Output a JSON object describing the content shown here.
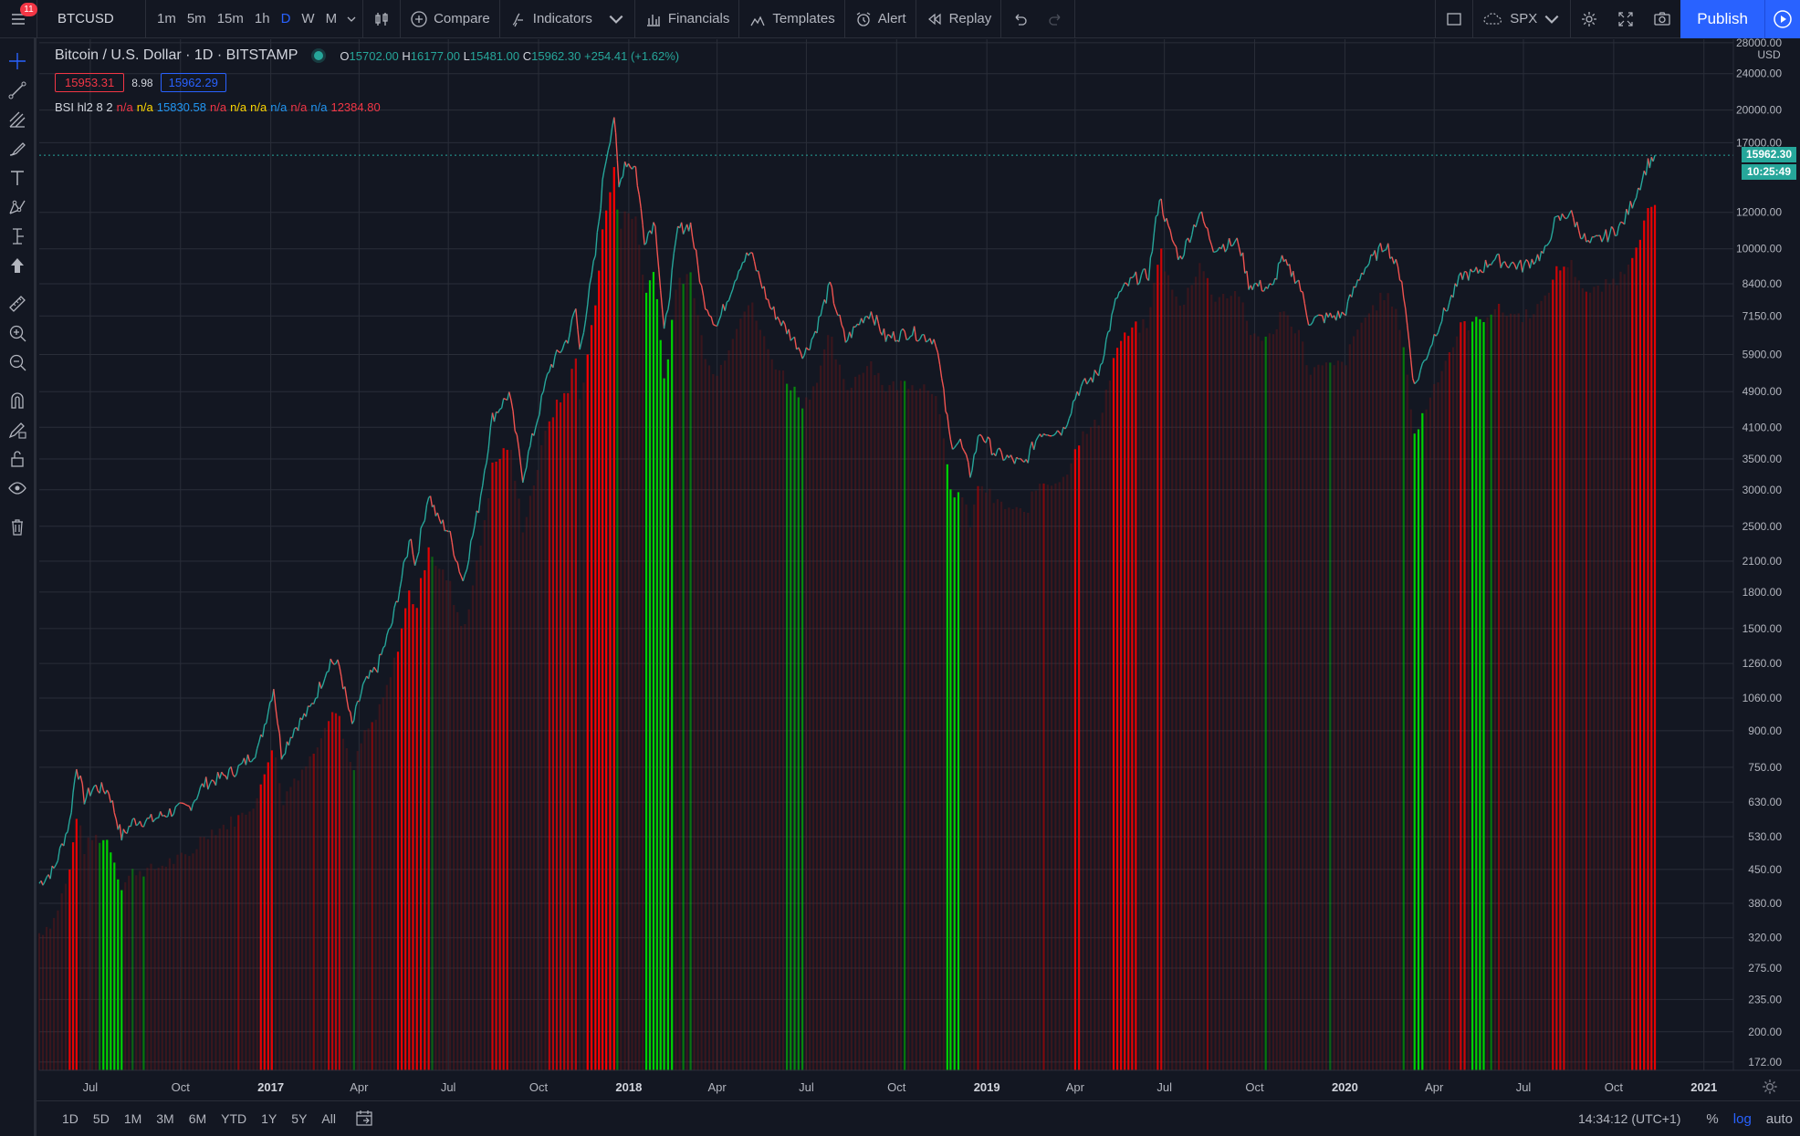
{
  "topbar": {
    "notifications": "11",
    "symbol": "BTCUSD",
    "intervals": [
      "1m",
      "5m",
      "15m",
      "1h",
      "D",
      "W",
      "M"
    ],
    "active_interval": "D",
    "compare_label": "Compare",
    "indicators_label": "Indicators",
    "financials_label": "Financials",
    "templates_label": "Templates",
    "alert_label": "Alert",
    "replay_label": "Replay",
    "spx_label": "SPX",
    "publish_label": "Publish"
  },
  "legend": {
    "title": "Bitcoin / U.S. Dollar · 1D · BITSTAMP",
    "open_label": "O",
    "open": "15702.00",
    "high_label": "H",
    "high": "16177.00",
    "low_label": "L",
    "low": "15481.00",
    "close_label": "C",
    "close": "15962.30",
    "change": "+254.41 (+1.62%)",
    "bid": "15953.31",
    "spread": "8.98",
    "ask": "15962.29",
    "indicator_name": "BSI hl2 8 2",
    "indicator_values": [
      "n/a",
      "n/a",
      "15830.58",
      "n/a",
      "n/a",
      "n/a",
      "n/a",
      "n/a",
      "n/a",
      "12384.80"
    ]
  },
  "price_scale": {
    "currency": "USD",
    "last_price_label": "15962.30",
    "countdown_label": "10:25:49"
  },
  "bottom": {
    "ranges": [
      "1D",
      "5D",
      "1M",
      "3M",
      "6M",
      "YTD",
      "1Y",
      "5Y",
      "All"
    ],
    "clock": "14:34:12 (UTC+1)",
    "percent_label": "%",
    "log_label": "log",
    "auto_label": "auto"
  },
  "colors": {
    "background": "#131722",
    "grid": "#2a2e39",
    "candle_up": "#26a69a",
    "candle_down": "#ef5350",
    "bar_red": "#ff0000",
    "bar_green": "#00c800",
    "accent": "#2962ff"
  },
  "chart_data": {
    "type": "line",
    "title": "Bitcoin / U.S. Dollar · 1D · BITSTAMP",
    "y_scale": "log",
    "ylim": [
      165,
      28500
    ],
    "yticks": [
      172,
      200,
      235,
      275,
      320,
      380,
      450,
      530,
      630,
      750,
      900,
      1060,
      1260,
      1500,
      1800,
      2100,
      2500,
      3000,
      3500,
      4100,
      4900,
      5900,
      7150,
      8400,
      10000,
      12000,
      17000,
      20000,
      24000,
      28000
    ],
    "ytick_labels": [
      "172.00",
      "200.00",
      "235.00",
      "275.00",
      "320.00",
      "380.00",
      "450.00",
      "530.00",
      "630.00",
      "750.00",
      "900.00",
      "1060.00",
      "1260.00",
      "1500.00",
      "1800.00",
      "2100.00",
      "2500.00",
      "3000.00",
      "3500.00",
      "4100.00",
      "4900.00",
      "5900.00",
      "7150.00",
      "8400.00",
      "10000.00",
      "12000.00",
      "17000.00",
      "20000.00",
      "24000.00",
      "28000.00"
    ],
    "xlim": [
      "2016-05-10",
      "2021-01-31"
    ],
    "xticks": [
      {
        "date": "2016-07-01",
        "label": "Jul",
        "bold": false
      },
      {
        "date": "2016-10-01",
        "label": "Oct",
        "bold": false
      },
      {
        "date": "2017-01-01",
        "label": "2017",
        "bold": true
      },
      {
        "date": "2017-04-01",
        "label": "Apr",
        "bold": false
      },
      {
        "date": "2017-07-01",
        "label": "Jul",
        "bold": false
      },
      {
        "date": "2017-10-01",
        "label": "Oct",
        "bold": false
      },
      {
        "date": "2018-01-01",
        "label": "2018",
        "bold": true
      },
      {
        "date": "2018-04-01",
        "label": "Apr",
        "bold": false
      },
      {
        "date": "2018-07-01",
        "label": "Jul",
        "bold": false
      },
      {
        "date": "2018-10-01",
        "label": "Oct",
        "bold": false
      },
      {
        "date": "2019-01-01",
        "label": "2019",
        "bold": true
      },
      {
        "date": "2019-04-01",
        "label": "Apr",
        "bold": false
      },
      {
        "date": "2019-07-01",
        "label": "Jul",
        "bold": false
      },
      {
        "date": "2019-10-01",
        "label": "Oct",
        "bold": false
      },
      {
        "date": "2020-01-01",
        "label": "2020",
        "bold": true
      },
      {
        "date": "2020-04-01",
        "label": "Apr",
        "bold": false
      },
      {
        "date": "2020-07-01",
        "label": "Jul",
        "bold": false
      },
      {
        "date": "2020-10-01",
        "label": "Oct",
        "bold": false
      },
      {
        "date": "2021-01-01",
        "label": "2021",
        "bold": true
      }
    ],
    "series": [
      {
        "name": "BTCUSD",
        "points": [
          [
            "2016-05-10",
            420
          ],
          [
            "2016-05-25",
            450
          ],
          [
            "2016-06-10",
            570
          ],
          [
            "2016-06-17",
            760
          ],
          [
            "2016-06-25",
            640
          ],
          [
            "2016-07-05",
            680
          ],
          [
            "2016-07-20",
            665
          ],
          [
            "2016-08-02",
            530
          ],
          [
            "2016-08-15",
            575
          ],
          [
            "2016-09-01",
            575
          ],
          [
            "2016-09-20",
            600
          ],
          [
            "2016-10-10",
            615
          ],
          [
            "2016-10-25",
            690
          ],
          [
            "2016-11-10",
            710
          ],
          [
            "2016-12-01",
            750
          ],
          [
            "2016-12-20",
            830
          ],
          [
            "2017-01-04",
            1120
          ],
          [
            "2017-01-12",
            800
          ],
          [
            "2017-01-25",
            910
          ],
          [
            "2017-02-10",
            1000
          ],
          [
            "2017-03-03",
            1280
          ],
          [
            "2017-03-12",
            1240
          ],
          [
            "2017-03-25",
            920
          ],
          [
            "2017-04-05",
            1120
          ],
          [
            "2017-04-20",
            1240
          ],
          [
            "2017-05-05",
            1550
          ],
          [
            "2017-05-24",
            2400
          ],
          [
            "2017-05-28",
            2050
          ],
          [
            "2017-06-11",
            2950
          ],
          [
            "2017-06-20",
            2600
          ],
          [
            "2017-07-01",
            2450
          ],
          [
            "2017-07-16",
            1900
          ],
          [
            "2017-08-01",
            2750
          ],
          [
            "2017-08-15",
            4300
          ],
          [
            "2017-09-01",
            4850
          ],
          [
            "2017-09-15",
            3200
          ],
          [
            "2017-09-30",
            4300
          ],
          [
            "2017-10-12",
            5500
          ],
          [
            "2017-10-31",
            6400
          ],
          [
            "2017-11-08",
            7400
          ],
          [
            "2017-11-12",
            6000
          ],
          [
            "2017-11-28",
            9700
          ],
          [
            "2017-12-07",
            15000
          ],
          [
            "2017-12-17",
            19500
          ],
          [
            "2017-12-22",
            13500
          ],
          [
            "2017-12-28",
            15500
          ],
          [
            "2018-01-08",
            15000
          ],
          [
            "2018-01-17",
            10500
          ],
          [
            "2018-01-28",
            11500
          ],
          [
            "2018-02-06",
            6500
          ],
          [
            "2018-02-20",
            11000
          ],
          [
            "2018-03-05",
            11300
          ],
          [
            "2018-03-18",
            7800
          ],
          [
            "2018-04-01",
            6800
          ],
          [
            "2018-04-25",
            9300
          ],
          [
            "2018-05-05",
            9800
          ],
          [
            "2018-05-25",
            7500
          ],
          [
            "2018-06-15",
            6500
          ],
          [
            "2018-06-29",
            5900
          ],
          [
            "2018-07-10",
            6600
          ],
          [
            "2018-07-25",
            8300
          ],
          [
            "2018-08-10",
            6300
          ],
          [
            "2018-08-28",
            7100
          ],
          [
            "2018-09-05",
            7300
          ],
          [
            "2018-09-20",
            6400
          ],
          [
            "2018-10-15",
            6600
          ],
          [
            "2018-11-10",
            6350
          ],
          [
            "2018-11-20",
            4500
          ],
          [
            "2018-11-25",
            3800
          ],
          [
            "2018-12-05",
            3800
          ],
          [
            "2018-12-15",
            3250
          ],
          [
            "2018-12-25",
            4000
          ],
          [
            "2019-01-10",
            3600
          ],
          [
            "2019-02-08",
            3400
          ],
          [
            "2019-02-24",
            4000
          ],
          [
            "2019-03-20",
            4050
          ],
          [
            "2019-04-03",
            4900
          ],
          [
            "2019-04-25",
            5400
          ],
          [
            "2019-05-14",
            7900
          ],
          [
            "2019-05-31",
            8600
          ],
          [
            "2019-06-15",
            8800
          ],
          [
            "2019-06-26",
            13000
          ],
          [
            "2019-07-05",
            11000
          ],
          [
            "2019-07-17",
            9500
          ],
          [
            "2019-08-06",
            12000
          ],
          [
            "2019-08-20",
            10100
          ],
          [
            "2019-09-15",
            10300
          ],
          [
            "2019-09-25",
            8400
          ],
          [
            "2019-10-20",
            8200
          ],
          [
            "2019-10-27",
            9500
          ],
          [
            "2019-11-15",
            8500
          ],
          [
            "2019-11-25",
            7000
          ],
          [
            "2019-12-15",
            7100
          ],
          [
            "2019-12-31",
            7200
          ],
          [
            "2020-01-18",
            8900
          ],
          [
            "2020-02-12",
            10300
          ],
          [
            "2020-02-28",
            8600
          ],
          [
            "2020-03-12",
            5000
          ],
          [
            "2020-03-16",
            5300
          ],
          [
            "2020-04-05",
            6800
          ],
          [
            "2020-04-30",
            8800
          ],
          [
            "2020-05-12",
            8800
          ],
          [
            "2020-05-31",
            9500
          ],
          [
            "2020-06-30",
            9150
          ],
          [
            "2020-07-25",
            9900
          ],
          [
            "2020-07-31",
            11300
          ],
          [
            "2020-08-17",
            12000
          ],
          [
            "2020-09-05",
            10200
          ],
          [
            "2020-09-25",
            10700
          ],
          [
            "2020-10-10",
            11300
          ],
          [
            "2020-10-22",
            12900
          ],
          [
            "2020-11-05",
            15300
          ],
          [
            "2020-11-12",
            15962
          ]
        ]
      },
      {
        "name": "BSI hl2 8 2",
        "bars": [
          {
            "from": "2016-06-08",
            "to": "2016-06-20",
            "color": "red",
            "strength": 0.9
          },
          {
            "from": "2016-07-12",
            "to": "2016-08-02",
            "color": "green",
            "strength": 1
          },
          {
            "from": "2016-08-10",
            "to": "2016-08-14",
            "color": "green",
            "strength": 0.4
          },
          {
            "from": "2016-12-20",
            "to": "2017-01-05",
            "color": "red",
            "strength": 0.9
          },
          {
            "from": "2017-03-01",
            "to": "2017-03-12",
            "color": "red",
            "strength": 0.7
          },
          {
            "from": "2017-03-24",
            "to": "2017-03-27",
            "color": "green",
            "strength": 0.4
          },
          {
            "from": "2017-05-10",
            "to": "2017-06-12",
            "color": "red",
            "strength": 0.9
          },
          {
            "from": "2017-06-14",
            "to": "2017-06-16",
            "color": "green",
            "strength": 0.4
          },
          {
            "from": "2017-08-12",
            "to": "2017-09-02",
            "color": "red",
            "strength": 0.8
          },
          {
            "from": "2017-10-10",
            "to": "2017-11-08",
            "color": "red",
            "strength": 0.7
          },
          {
            "from": "2017-11-20",
            "to": "2017-12-20",
            "color": "red",
            "strength": 1
          },
          {
            "from": "2018-01-16",
            "to": "2018-02-14",
            "color": "green",
            "strength": 1
          },
          {
            "from": "2018-03-05",
            "to": "2018-03-08",
            "color": "green",
            "strength": 0.5
          },
          {
            "from": "2018-06-10",
            "to": "2018-06-30",
            "color": "green",
            "strength": 0.6
          },
          {
            "from": "2018-11-20",
            "to": "2018-12-05",
            "color": "green",
            "strength": 1
          },
          {
            "from": "2019-04-01",
            "to": "2019-04-05",
            "color": "red",
            "strength": 0.9
          },
          {
            "from": "2019-05-10",
            "to": "2019-06-03",
            "color": "red",
            "strength": 0.9
          },
          {
            "from": "2019-06-22",
            "to": "2019-06-28",
            "color": "red",
            "strength": 0.8
          },
          {
            "from": "2019-12-15",
            "to": "2019-12-18",
            "color": "green",
            "strength": 0.4
          },
          {
            "from": "2020-03-12",
            "to": "2020-03-20",
            "color": "green",
            "strength": 1
          },
          {
            "from": "2020-04-28",
            "to": "2020-05-05",
            "color": "red",
            "strength": 0.8
          },
          {
            "from": "2020-05-10",
            "to": "2020-05-25",
            "color": "green",
            "strength": 1
          },
          {
            "from": "2020-07-28",
            "to": "2020-08-15",
            "color": "red",
            "strength": 0.8
          },
          {
            "from": "2020-10-20",
            "to": "2020-11-12",
            "color": "red",
            "strength": 0.9
          }
        ]
      }
    ]
  }
}
